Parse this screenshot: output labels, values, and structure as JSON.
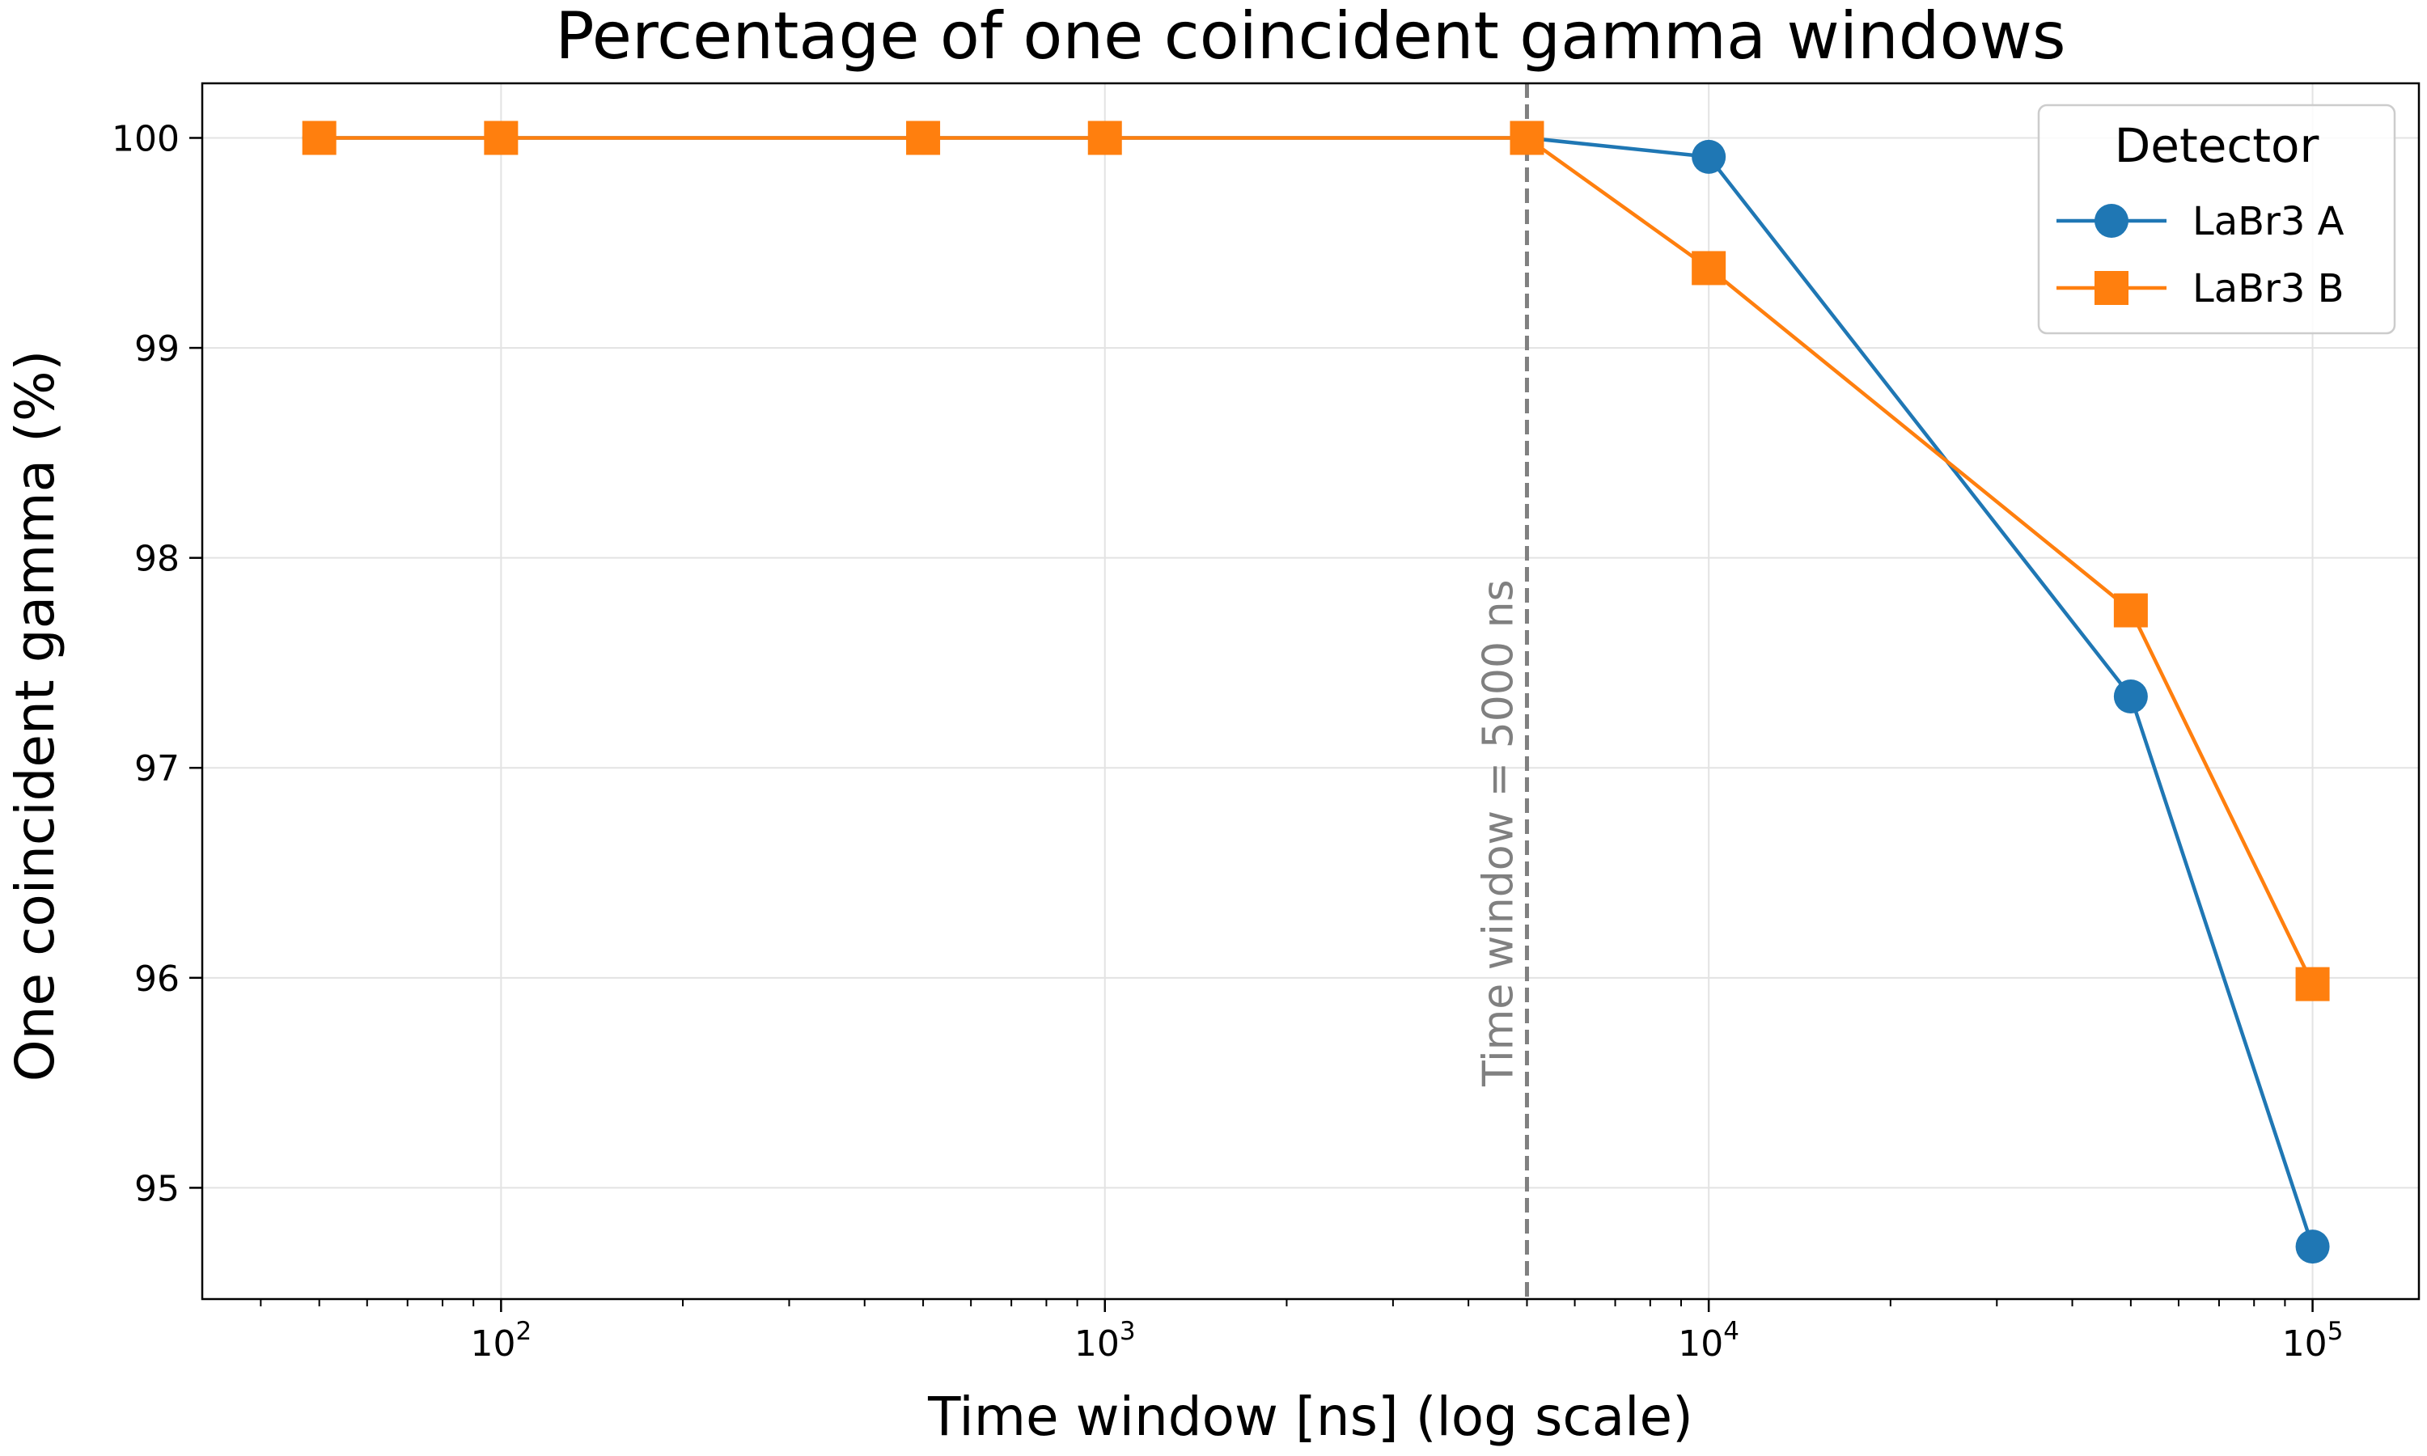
{
  "chart_data": {
    "type": "line",
    "title": "Percentage of one coincident gamma windows",
    "xlabel": "Time window [ns] (log scale)",
    "ylabel": "One coincident gamma (%)",
    "xscale": "log",
    "xlim": [
      32,
      150000
    ],
    "ylim": [
      94.47,
      100.26
    ],
    "xticks": [
      {
        "value": 100,
        "base": "10",
        "exp": "2"
      },
      {
        "value": 1000,
        "base": "10",
        "exp": "3"
      },
      {
        "value": 10000,
        "base": "10",
        "exp": "4"
      },
      {
        "value": 100000,
        "base": "10",
        "exp": "5"
      }
    ],
    "yticks": [
      95,
      96,
      97,
      98,
      99,
      100
    ],
    "grid": true,
    "legend": {
      "title": "Detector",
      "placement": "top-right"
    },
    "x": [
      50,
      100,
      500,
      1000,
      5000,
      10000,
      50000,
      100000
    ],
    "series": [
      {
        "name": "LaBr3 A",
        "color": "#1f77b4",
        "marker": "circle",
        "values": [
          100,
          100,
          100,
          100,
          100,
          99.91,
          97.34,
          94.72
        ]
      },
      {
        "name": "LaBr3 B",
        "color": "#ff7f0e",
        "marker": "square",
        "values": [
          100,
          100,
          100,
          100,
          100,
          99.38,
          97.75,
          95.97
        ]
      }
    ],
    "annotations": [
      {
        "type": "vline",
        "x": 5000,
        "color": "#808080",
        "style": "dashed",
        "label": "Time window = 5000 ns"
      }
    ]
  }
}
